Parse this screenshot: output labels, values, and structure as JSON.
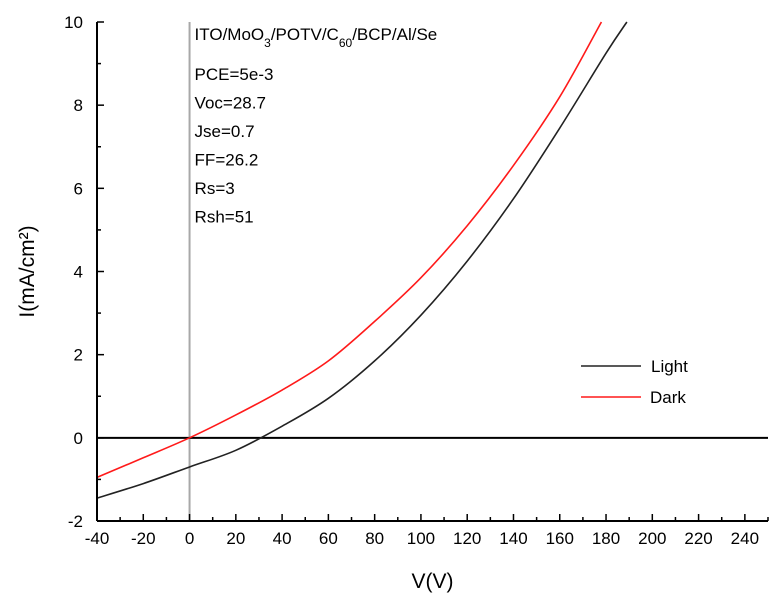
{
  "chart_data": {
    "type": "line",
    "title": "",
    "xlabel": "V(V)",
    "ylabel": "I(mA/cm²)",
    "xlim": [
      -40,
      250
    ],
    "ylim": [
      -2,
      10
    ],
    "x_ticks": [
      -40,
      -20,
      0,
      20,
      40,
      60,
      80,
      100,
      120,
      140,
      160,
      180,
      200,
      220,
      240
    ],
    "y_ticks": [
      -2,
      0,
      2,
      4,
      6,
      8,
      10
    ],
    "grid": false,
    "legend_position": "right",
    "annotation": {
      "device": "ITO/MoO3/POTV/C60/BCP/Al/Se",
      "device_parts": [
        "ITO/MoO",
        "3",
        "/POTV/C",
        "60",
        "/BCP/Al/Se"
      ],
      "lines": [
        "PCE=5e-3",
        "Voc=28.7",
        "Jse=0.7",
        "FF=26.2",
        "Rs=3",
        "Rsh=51"
      ]
    },
    "series": [
      {
        "name": "Light",
        "color": "#222222",
        "x": [
          -40,
          -20,
          0,
          20,
          40,
          60,
          80,
          100,
          120,
          140,
          160,
          180,
          189
        ],
        "y": [
          -1.45,
          -1.1,
          -0.7,
          -0.3,
          0.28,
          0.95,
          1.85,
          2.95,
          4.25,
          5.75,
          7.45,
          9.25,
          10.0
        ]
      },
      {
        "name": "Dark",
        "color": "#ff1a1a",
        "x": [
          -40,
          -20,
          0,
          20,
          40,
          60,
          80,
          100,
          120,
          140,
          160,
          178
        ],
        "y": [
          -0.95,
          -0.48,
          0.0,
          0.55,
          1.15,
          1.85,
          2.8,
          3.85,
          5.1,
          6.55,
          8.2,
          10.0
        ]
      }
    ]
  }
}
